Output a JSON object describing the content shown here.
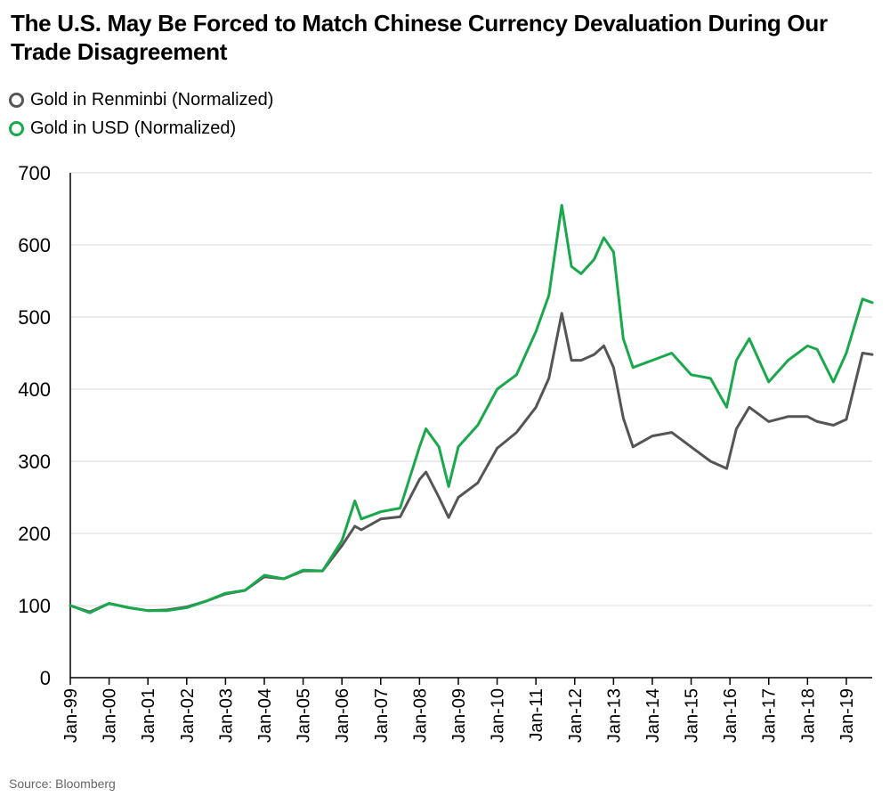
{
  "header": {
    "title": "The U.S. May Be Forced to Match Chinese Currency Devaluation During Our Trade Disagreement"
  },
  "legend": [
    {
      "label": "Gold in Renminbi (Normalized)",
      "color": "#555555"
    },
    {
      "label": "Gold in USD (Normalized)",
      "color": "#19a84b"
    }
  ],
  "footer": {
    "source": "Source: Bloomberg"
  },
  "colors": {
    "grid": "#d9d9d9",
    "axis": "#000000"
  },
  "chart_data": {
    "type": "line",
    "title": "The U.S. May Be Forced to Match Chinese Currency Devaluation During Our Trade Disagreement",
    "xlabel": "",
    "ylabel": "",
    "ylim": [
      0,
      700
    ],
    "yticks": [
      0,
      100,
      200,
      300,
      400,
      500,
      600,
      700
    ],
    "xrange": [
      "1999-01",
      "2019-09"
    ],
    "xtick_labels": [
      "Jan-99",
      "Jan-00",
      "Jan-01",
      "Jan-02",
      "Jan-03",
      "Jan-04",
      "Jan-05",
      "Jan-06",
      "Jan-07",
      "Jan-08",
      "Jan-09",
      "Jan-10",
      "Jan-11",
      "Jan-12",
      "Jan-13",
      "Jan-14",
      "Jan-15",
      "Jan-16",
      "Jan-17",
      "Jan-18",
      "Jan-19"
    ],
    "grid": true,
    "legend_position": "top-left",
    "x": [
      "1999-01",
      "1999-07",
      "2000-01",
      "2000-07",
      "2001-01",
      "2001-07",
      "2002-01",
      "2002-07",
      "2003-01",
      "2003-07",
      "2004-01",
      "2004-07",
      "2005-01",
      "2005-07",
      "2006-01",
      "2006-05",
      "2006-07",
      "2007-01",
      "2007-07",
      "2008-01",
      "2008-03",
      "2008-07",
      "2008-10",
      "2009-01",
      "2009-07",
      "2010-01",
      "2010-07",
      "2011-01",
      "2011-05",
      "2011-09",
      "2011-12",
      "2012-03",
      "2012-07",
      "2012-10",
      "2013-01",
      "2013-04",
      "2013-07",
      "2014-01",
      "2014-07",
      "2015-01",
      "2015-07",
      "2015-12",
      "2016-03",
      "2016-07",
      "2017-01",
      "2017-07",
      "2018-01",
      "2018-04",
      "2018-09",
      "2019-01",
      "2019-06",
      "2019-09"
    ],
    "series": [
      {
        "name": "Gold in Renminbi (Normalized)",
        "color": "#555555",
        "values": [
          100,
          91,
          103,
          97,
          93,
          94,
          98,
          106,
          116,
          121,
          140,
          137,
          148,
          148,
          183,
          210,
          205,
          220,
          223,
          275,
          285,
          250,
          222,
          250,
          270,
          318,
          340,
          375,
          415,
          505,
          440,
          440,
          448,
          460,
          430,
          360,
          320,
          335,
          340,
          320,
          300,
          290,
          345,
          375,
          355,
          362,
          362,
          355,
          350,
          358,
          450,
          448
        ]
      },
      {
        "name": "Gold in USD (Normalized)",
        "color": "#19a84b",
        "values": [
          100,
          90,
          103,
          97,
          93,
          93,
          97,
          106,
          117,
          121,
          142,
          137,
          149,
          148,
          190,
          245,
          220,
          230,
          235,
          320,
          345,
          320,
          265,
          320,
          350,
          400,
          420,
          480,
          530,
          655,
          570,
          560,
          580,
          610,
          590,
          470,
          430,
          440,
          450,
          420,
          415,
          375,
          440,
          470,
          410,
          440,
          460,
          455,
          410,
          450,
          525,
          520
        ]
      }
    ]
  }
}
